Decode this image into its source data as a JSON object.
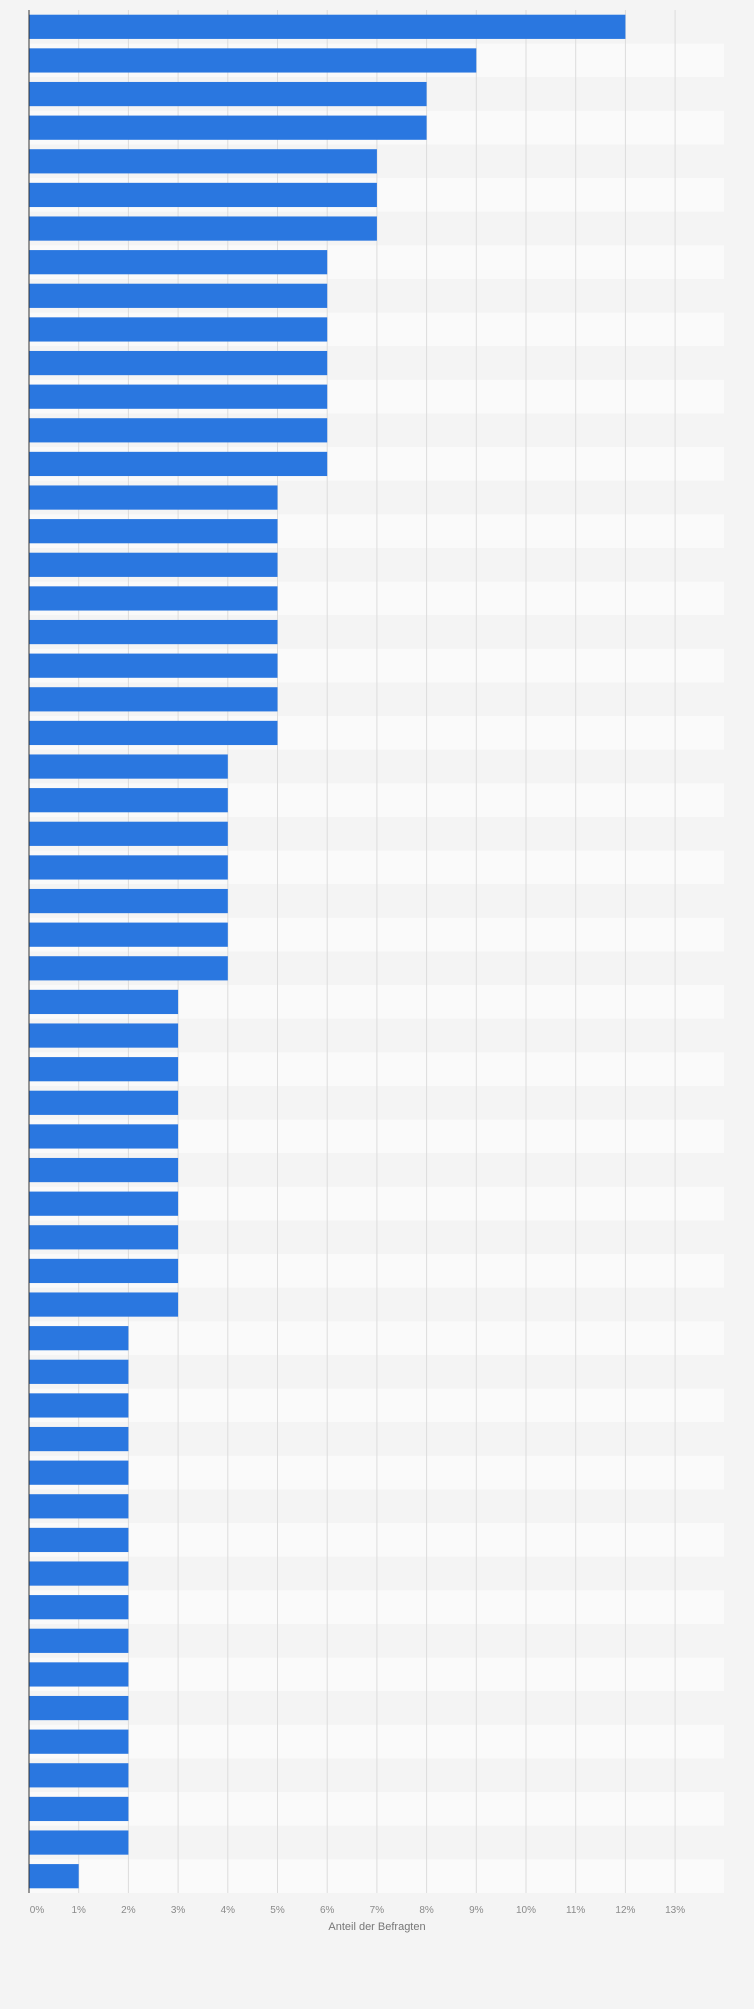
{
  "chart_data": {
    "type": "bar",
    "orientation": "horizontal",
    "title": "",
    "xlabel": "Anteil der Befragten",
    "ylabel": "",
    "xlim": [
      0,
      14
    ],
    "x_ticks": [
      "0%",
      "1%",
      "2%",
      "3%",
      "4%",
      "5%",
      "6%",
      "7%",
      "8%",
      "9%",
      "10%",
      "11%",
      "12%",
      "13%"
    ],
    "values": [
      12,
      9,
      8,
      8,
      7,
      7,
      7,
      6,
      6,
      6,
      6,
      6,
      6,
      6,
      5,
      5,
      5,
      5,
      5,
      5,
      5,
      5,
      4,
      4,
      4,
      4,
      4,
      4,
      4,
      3,
      3,
      3,
      3,
      3,
      3,
      3,
      3,
      3,
      3,
      2,
      2,
      2,
      2,
      2,
      2,
      2,
      2,
      2,
      2,
      2,
      2,
      2,
      2,
      2,
      2,
      1
    ],
    "unit": "%",
    "grid": true,
    "colors": {
      "bar": "#2a77e0",
      "row_even": "#f4f4f4",
      "row_odd": "#fafafa",
      "grid": "#dcdcdc",
      "axis": "#333333"
    }
  }
}
